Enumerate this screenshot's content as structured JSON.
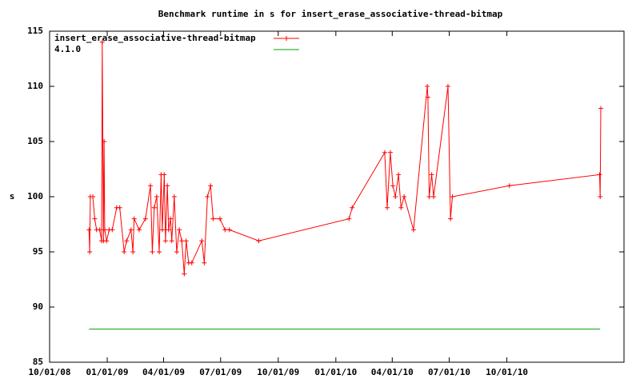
{
  "chart_data": {
    "type": "line",
    "title": "Benchmark runtime in s for insert_erase_associative-thread-bitmap",
    "y_label": "s",
    "xlim": [
      "10/01/08",
      "04/06/11"
    ],
    "xticks": [
      "10/01/08",
      "01/01/09",
      "04/01/09",
      "07/01/09",
      "10/01/09",
      "01/01/10",
      "04/01/10",
      "07/01/10",
      "10/01/10"
    ],
    "ylim": [
      85,
      115
    ],
    "yticks": [
      85,
      90,
      95,
      100,
      105,
      110,
      115
    ],
    "grid": false,
    "legend": "top-left",
    "series": [
      {
        "name": "insert_erase_associative-thread-bitmap",
        "color": "#ff0000",
        "markers": true,
        "x": [
          "12/03/08",
          "12/04/08",
          "12/05/08",
          "12/09/08",
          "12/12/08",
          "12/15/08",
          "12/20/08",
          "12/23/08",
          "12/24/08",
          "12/26/08",
          "12/27/08",
          "12/28/08",
          "12/31/08",
          "01/04/09",
          "01/09/09",
          "01/16/09",
          "01/21/09",
          "01/28/09",
          "02/01/09",
          "02/08/09",
          "02/11/09",
          "02/13/09",
          "02/21/09",
          "03/03/09",
          "03/11/09",
          "03/14/09",
          "03/17/09",
          "03/21/09",
          "03/25/09",
          "03/28/09",
          "03/30/09",
          "04/02/09",
          "04/04/09",
          "04/07/09",
          "04/09/09",
          "04/12/09",
          "04/14/09",
          "04/18/09",
          "04/22/09",
          "04/26/09",
          "04/30/09",
          "05/04/09",
          "05/07/09",
          "05/11/09",
          "05/16/09",
          "06/01/09",
          "06/05/09",
          "06/10/09",
          "06/15/09",
          "06/19/09",
          "06/30/09",
          "07/08/09",
          "07/15/09",
          "08/31/09",
          "01/22/10",
          "01/27/10",
          "03/20/10",
          "03/24/10",
          "03/29/10",
          "04/02/10",
          "04/06/10",
          "04/11/10",
          "04/15/10",
          "04/20/10",
          "05/05/10",
          "05/27/10",
          "05/28/10",
          "05/30/10",
          "06/03/10",
          "06/06/10",
          "06/29/10",
          "07/03/10",
          "07/06/10",
          "10/05/10",
          "02/26/11",
          "02/27/11",
          "02/28/11"
        ],
        "values": [
          97,
          95,
          100,
          100,
          98,
          97,
          97,
          96,
          114,
          96,
          105,
          97,
          96,
          97,
          97,
          99,
          99,
          95,
          96,
          97,
          95,
          98,
          97,
          98,
          101,
          95,
          99,
          100,
          95,
          102,
          97,
          102,
          96,
          101,
          97,
          98,
          96,
          100,
          95,
          97,
          96,
          93,
          96,
          94,
          94,
          96,
          94,
          100,
          101,
          98,
          98,
          97,
          97,
          96,
          98,
          99,
          104,
          99,
          104,
          101,
          100,
          102,
          99,
          100,
          97,
          110,
          109,
          100,
          102,
          100,
          110,
          98,
          100,
          101,
          102,
          100,
          108
        ]
      },
      {
        "name": "4.1.0",
        "color": "#00a000",
        "markers": false,
        "x": [
          "12/03/08",
          "02/27/11"
        ],
        "values": [
          88,
          88
        ]
      }
    ]
  }
}
